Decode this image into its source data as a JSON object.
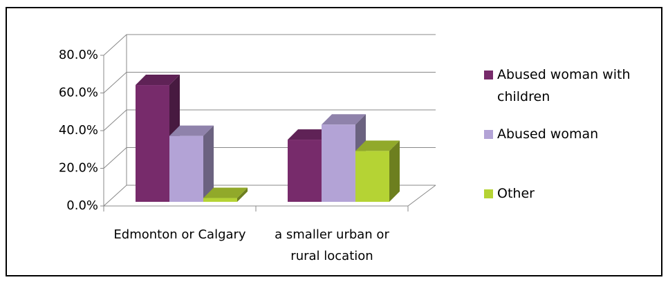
{
  "chart_data": {
    "type": "bar3d",
    "categories": [
      "Edmonton or Calgary",
      "a smaller urban or rural location"
    ],
    "series": [
      {
        "name": "Abused woman with children",
        "color": "#772b6b",
        "values": [
          62,
          33
        ]
      },
      {
        "name": "Abused woman",
        "color": "#b3a3d6",
        "values": [
          35,
          41
        ]
      },
      {
        "name": "Other",
        "color": "#b5d334",
        "values": [
          2,
          27
        ]
      }
    ],
    "ylim": [
      0,
      80
    ],
    "yticks": [
      {
        "value": 0,
        "label": "0.0%"
      },
      {
        "value": 20,
        "label": "20.0%"
      },
      {
        "value": 40,
        "label": "40.0%"
      },
      {
        "value": 60,
        "label": "60.0%"
      },
      {
        "value": 80,
        "label": "80.0%"
      }
    ],
    "grid": true,
    "legend": "right"
  }
}
